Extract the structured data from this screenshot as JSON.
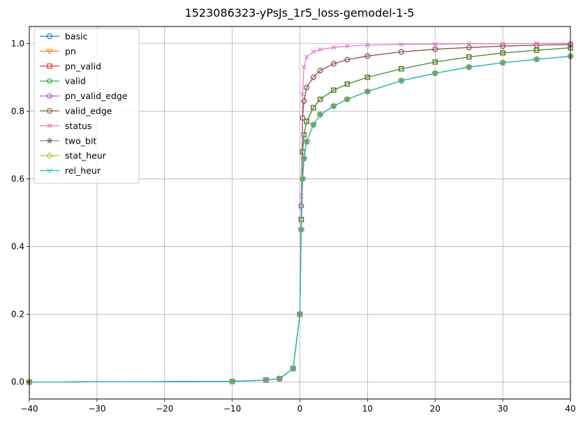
{
  "chart_data": {
    "type": "line",
    "title": "1523086323-yPsJs_1r5_loss-gemodel-1-5",
    "xlabel": "",
    "ylabel": "",
    "xlim": [
      -40,
      40
    ],
    "ylim": [
      -0.05,
      1.05
    ],
    "xticks": [
      -40,
      -30,
      -20,
      -10,
      0,
      10,
      20,
      30,
      40
    ],
    "xtick_labels": [
      "−40",
      "−30",
      "−20",
      "−10",
      "0",
      "10",
      "20",
      "30",
      "40"
    ],
    "yticks": [
      0.0,
      0.2,
      0.4,
      0.6,
      0.8,
      1.0
    ],
    "ytick_labels": [
      "0.0",
      "0.2",
      "0.4",
      "0.6",
      "0.8",
      "1.0"
    ],
    "grid": true,
    "legend_position": "top-left",
    "series": [
      {
        "name": "basic",
        "color": "#1f77b4",
        "marker": "circle",
        "x": [
          -40,
          -10,
          -5,
          -3,
          -1,
          0,
          0.2,
          0.4,
          0.6,
          1,
          2,
          3,
          5,
          7,
          10,
          15,
          20,
          25,
          30,
          35,
          40
        ],
        "y": [
          0,
          0.002,
          0.006,
          0.01,
          0.04,
          0.2,
          0.45,
          0.6,
          0.66,
          0.71,
          0.76,
          0.79,
          0.815,
          0.835,
          0.858,
          0.89,
          0.912,
          0.93,
          0.943,
          0.953,
          0.962
        ]
      },
      {
        "name": "pn",
        "color": "#ff7f0e",
        "marker": "triangle-down",
        "x": [
          -40,
          -10,
          -5,
          -3,
          -1,
          0,
          0.2,
          0.4,
          0.6,
          1,
          2,
          3,
          5,
          7,
          10,
          15,
          20,
          25,
          30,
          35,
          40
        ],
        "y": [
          0,
          0.002,
          0.006,
          0.01,
          0.04,
          0.2,
          0.45,
          0.6,
          0.66,
          0.71,
          0.76,
          0.79,
          0.815,
          0.835,
          0.858,
          0.89,
          0.912,
          0.93,
          0.943,
          0.953,
          0.962
        ]
      },
      {
        "name": "pn_valid",
        "color": "#d62728",
        "marker": "square",
        "x": [
          -40,
          -10,
          -5,
          -3,
          -1,
          0,
          0.2,
          0.4,
          0.6,
          1,
          2,
          3,
          5,
          7,
          10,
          15,
          20,
          25,
          30,
          35,
          40
        ],
        "y": [
          0,
          0.002,
          0.006,
          0.01,
          0.04,
          0.2,
          0.48,
          0.68,
          0.73,
          0.77,
          0.81,
          0.835,
          0.862,
          0.88,
          0.9,
          0.925,
          0.945,
          0.96,
          0.972,
          0.98,
          0.987
        ]
      },
      {
        "name": "valid",
        "color": "#2ca02c",
        "marker": "pentagon",
        "x": [
          -40,
          -10,
          -5,
          -3,
          -1,
          0,
          0.2,
          0.4,
          0.6,
          1,
          2,
          3,
          5,
          7,
          10,
          15,
          20,
          25,
          30,
          35,
          40
        ],
        "y": [
          0,
          0.002,
          0.006,
          0.01,
          0.04,
          0.2,
          0.48,
          0.68,
          0.73,
          0.77,
          0.81,
          0.835,
          0.862,
          0.88,
          0.9,
          0.925,
          0.945,
          0.96,
          0.972,
          0.98,
          0.987
        ]
      },
      {
        "name": "pn_valid_edge",
        "color": "#9467bd",
        "marker": "hexagon",
        "x": [
          -40,
          -10,
          -5,
          -3,
          -1,
          0,
          0.2,
          0.4,
          0.6,
          1,
          2,
          3,
          5,
          7,
          10,
          15,
          20,
          25,
          30,
          35,
          40
        ],
        "y": [
          0,
          0.002,
          0.006,
          0.01,
          0.04,
          0.2,
          0.52,
          0.78,
          0.83,
          0.87,
          0.9,
          0.92,
          0.94,
          0.952,
          0.963,
          0.975,
          0.983,
          0.988,
          0.992,
          0.995,
          0.997
        ]
      },
      {
        "name": "valid_edge",
        "color": "#8c564b",
        "marker": "octagon",
        "x": [
          -40,
          -10,
          -5,
          -3,
          -1,
          0,
          0.2,
          0.4,
          0.6,
          1,
          2,
          3,
          5,
          7,
          10,
          15,
          20,
          25,
          30,
          35,
          40
        ],
        "y": [
          0,
          0.002,
          0.006,
          0.01,
          0.04,
          0.2,
          0.52,
          0.78,
          0.83,
          0.87,
          0.9,
          0.92,
          0.94,
          0.952,
          0.963,
          0.975,
          0.983,
          0.988,
          0.992,
          0.995,
          0.997
        ]
      },
      {
        "name": "status",
        "color": "#e377c2",
        "marker": "x",
        "x": [
          -40,
          -10,
          -5,
          -3,
          -1,
          0,
          0.2,
          0.4,
          0.6,
          1,
          2,
          3,
          5,
          7,
          10,
          15,
          20,
          25,
          30,
          35,
          40
        ],
        "y": [
          0,
          0.002,
          0.006,
          0.01,
          0.04,
          0.2,
          0.55,
          0.85,
          0.93,
          0.96,
          0.975,
          0.982,
          0.988,
          0.992,
          0.995,
          0.997,
          0.998,
          0.999,
          0.999,
          1.0,
          1.0
        ]
      },
      {
        "name": "two_bit",
        "color": "#7f7f7f",
        "marker": "star",
        "x": [
          -40,
          -10,
          -5,
          -3,
          -1,
          0,
          0.2,
          0.4,
          0.6,
          1,
          2,
          3,
          5,
          7,
          10,
          15,
          20,
          25,
          30,
          35,
          40
        ],
        "y": [
          0,
          0.002,
          0.006,
          0.01,
          0.04,
          0.2,
          0.45,
          0.6,
          0.66,
          0.71,
          0.76,
          0.79,
          0.815,
          0.835,
          0.858,
          0.89,
          0.912,
          0.93,
          0.943,
          0.953,
          0.962
        ]
      },
      {
        "name": "stat_heur",
        "color": "#bcbd22",
        "marker": "diamond",
        "x": [
          -40,
          -10,
          -5,
          -3,
          -1,
          0,
          0.2,
          0.4,
          0.6,
          1,
          2,
          3,
          5,
          7,
          10,
          15,
          20,
          25,
          30,
          35,
          40
        ],
        "y": [
          0,
          0.002,
          0.006,
          0.01,
          0.04,
          0.2,
          0.45,
          0.6,
          0.66,
          0.71,
          0.76,
          0.79,
          0.815,
          0.835,
          0.858,
          0.89,
          0.912,
          0.93,
          0.943,
          0.953,
          0.962
        ]
      },
      {
        "name": "rel_heur",
        "color": "#17becf",
        "marker": "tri-down",
        "x": [
          -40,
          -10,
          -5,
          -3,
          -1,
          0,
          0.2,
          0.4,
          0.6,
          1,
          2,
          3,
          5,
          7,
          10,
          15,
          20,
          25,
          30,
          35,
          40
        ],
        "y": [
          0,
          0.002,
          0.006,
          0.01,
          0.04,
          0.2,
          0.45,
          0.6,
          0.66,
          0.71,
          0.76,
          0.79,
          0.815,
          0.835,
          0.858,
          0.89,
          0.912,
          0.93,
          0.943,
          0.953,
          0.962
        ]
      }
    ]
  }
}
